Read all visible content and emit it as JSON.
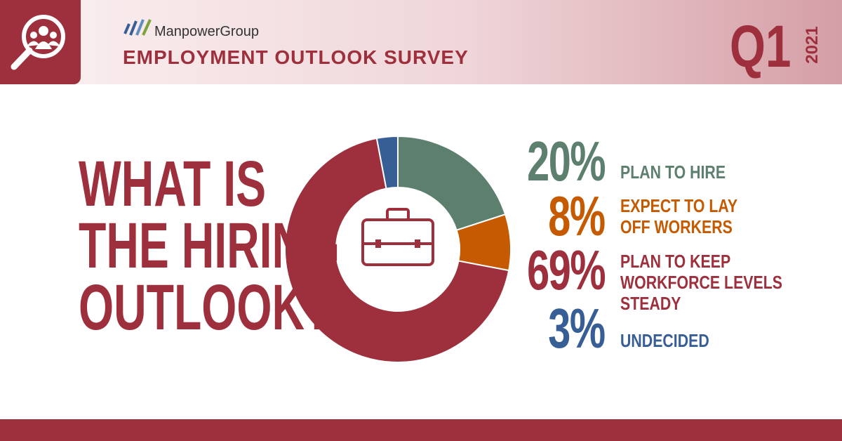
{
  "header": {
    "brand": "ManpowerGroup",
    "title": "EMPLOYMENT OUTLOOK SURVEY",
    "quarter": "Q1",
    "year": "2021"
  },
  "chart_data": {
    "type": "pie",
    "donut": true,
    "title": [
      "WHAT IS",
      "THE HIRING",
      "OUTLOOK?"
    ],
    "categories": [
      "PLAN TO HIRE",
      "EXPECT TO LAY OFF WORKERS",
      "PLAN TO KEEP WORKFORCE LEVELS STEADY",
      "UNDECIDED"
    ],
    "values": [
      20,
      8,
      69,
      3
    ],
    "value_labels": [
      "20%",
      "8%",
      "69%",
      "3%"
    ],
    "colors": [
      "#5c7f6e",
      "#c55a00",
      "#9e2f3c",
      "#375f96"
    ]
  }
}
